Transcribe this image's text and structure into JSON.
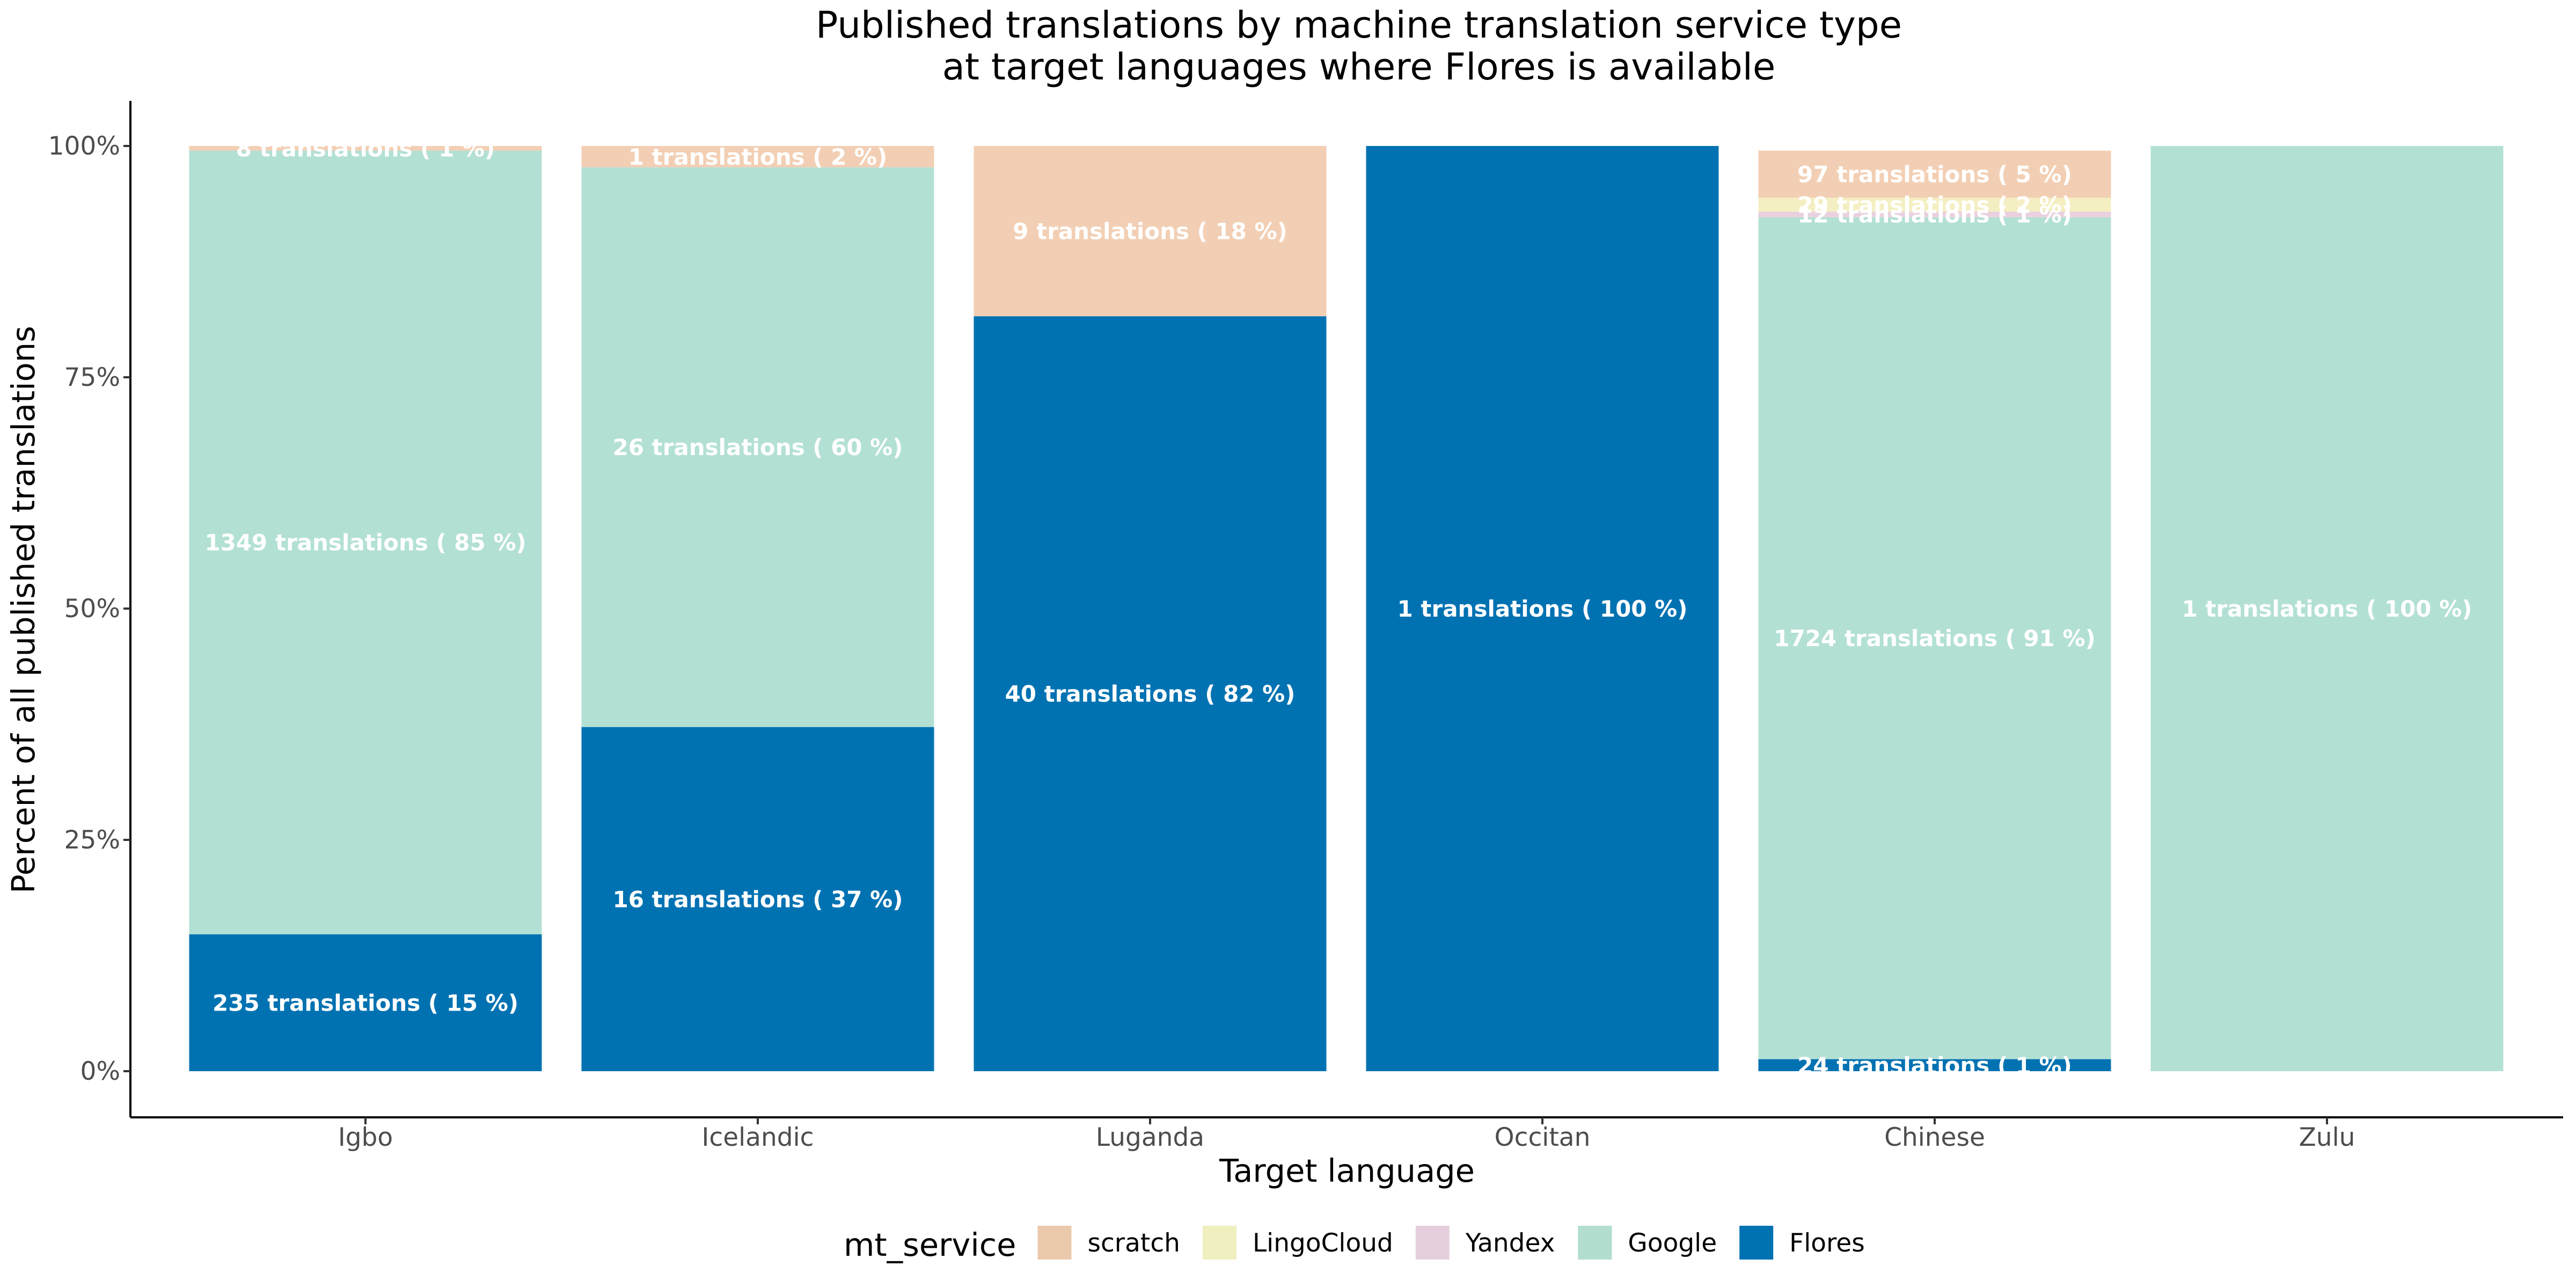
{
  "chart_data": {
    "type": "bar",
    "stacked": true,
    "percent": true,
    "title": [
      "Published translations by machine translation service type",
      "at target languages where Flores is available"
    ],
    "xlabel": "Target language",
    "ylabel": "Percent of all published translations",
    "ylim": [
      0,
      100
    ],
    "yticks": [
      0,
      25,
      50,
      75,
      100
    ],
    "ytick_labels": [
      "0%",
      "25%",
      "50%",
      "75%",
      "100%"
    ],
    "categories": [
      "Igbo",
      "Icelandic",
      "Luganda",
      "Occitan",
      "Chinese",
      "Zulu"
    ],
    "grid": false,
    "legend": {
      "title": "mt_service",
      "position": "bottom",
      "entries": [
        "scratch",
        "LingoCloud",
        "Yandex",
        "Google",
        "Flores"
      ]
    },
    "colors": {
      "scratch": "#f2cfb4",
      "LingoCloud": "#f4efc2",
      "Yandex": "#ead0df",
      "Google": "#b3e0d4",
      "Flores": "#0072b2"
    },
    "legend_colors": {
      "scratch": "#ebc9ad",
      "LingoCloud": "#f0efc0",
      "Yandex": "#e6cfdd",
      "Google": "#b2ddcf",
      "Flores": "#0072b2"
    },
    "stack_order": [
      "Flores",
      "Google",
      "Yandex",
      "LingoCloud",
      "scratch"
    ],
    "series": [
      {
        "name": "Flores",
        "values": [
          14.8,
          37.2,
          81.6,
          100,
          1.3,
          0
        ],
        "labels": [
          "235  translations ( 15 %)",
          "16  translations ( 37 %)",
          "40  translations ( 82 %)",
          "1  translations ( 100 %)",
          "24  translations ( 1 %)",
          ""
        ]
      },
      {
        "name": "Google",
        "values": [
          84.7,
          60.5,
          0,
          0,
          91.0,
          100
        ],
        "labels": [
          "1349  translations ( 85 %)",
          "26  translations ( 60 %)",
          "",
          "",
          "1724  translations ( 91 %)",
          "1  translations ( 100 %)"
        ]
      },
      {
        "name": "Yandex",
        "values": [
          0,
          0,
          0,
          0,
          0.6,
          0
        ],
        "labels": [
          "",
          "",
          "",
          "",
          "12  translations ( 1 %)",
          ""
        ]
      },
      {
        "name": "LingoCloud",
        "values": [
          0,
          0,
          0,
          0,
          1.5,
          0
        ],
        "labels": [
          "",
          "",
          "",
          "",
          "29  translations ( 2 %)",
          ""
        ]
      },
      {
        "name": "scratch",
        "values": [
          0.5,
          2.3,
          18.4,
          0,
          5.1,
          0
        ],
        "labels": [
          "8  translations ( 1 %)",
          "1  translations ( 2 %)",
          "9  translations ( 18 %)",
          "",
          "97  translations ( 5 %)",
          ""
        ]
      }
    ]
  }
}
